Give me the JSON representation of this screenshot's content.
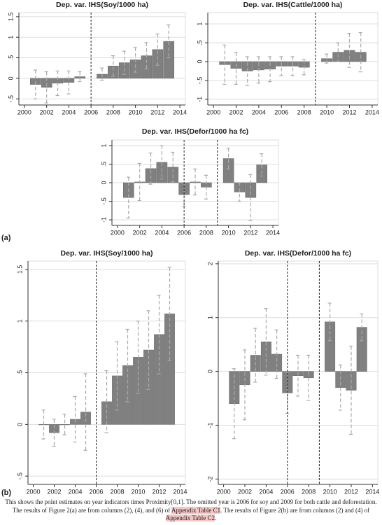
{
  "chart_data": [
    {
      "type": "bar",
      "title": "Dep. var. IHS(Soy/1000 ha)",
      "color": "#808080",
      "grid": true,
      "x": [
        2001,
        2002,
        2003,
        2004,
        2005,
        2007,
        2008,
        2009,
        2010,
        2011,
        2012,
        2013
      ],
      "values": [
        -0.15,
        -0.22,
        -0.12,
        -0.1,
        0.04,
        0.1,
        0.3,
        0.38,
        0.45,
        0.55,
        0.7,
        0.9
      ],
      "errors": [
        0.35,
        0.38,
        0.3,
        0.28,
        0.12,
        0.15,
        0.25,
        0.28,
        0.3,
        0.32,
        0.38,
        0.4
      ],
      "reference_lines": [
        2006
      ],
      "xlim": [
        1999.5,
        2014.5
      ],
      "xticks": [
        2000,
        2002,
        2004,
        2006,
        2008,
        2010,
        2012,
        2014
      ],
      "ylim": [
        -0.65,
        1.6
      ],
      "yticks": [
        {
          "value": -0.5,
          "label": "-.5"
        },
        0,
        {
          "value": 0.5,
          "label": ".5"
        },
        1,
        1.5
      ]
    },
    {
      "type": "bar",
      "title": "Dep. var. IHS(Cattle/1000 ha)",
      "color": "#808080",
      "grid": true,
      "x": [
        2001,
        2002,
        2003,
        2004,
        2005,
        2006,
        2007,
        2008,
        2010,
        2011,
        2012,
        2013
      ],
      "values": [
        -0.08,
        -0.18,
        -0.25,
        -0.22,
        -0.2,
        -0.12,
        -0.12,
        -0.15,
        0.08,
        0.25,
        0.3,
        0.25
      ],
      "errors": [
        0.52,
        0.42,
        0.38,
        0.35,
        0.33,
        0.25,
        0.25,
        0.2,
        0.12,
        0.25,
        0.45,
        0.52
      ],
      "reference_lines": [
        2009
      ],
      "xlim": [
        1999.5,
        2014.5
      ],
      "xticks": [
        2000,
        2002,
        2004,
        2006,
        2008,
        2010,
        2012,
        2014
      ],
      "ylim": [
        -1.15,
        1.3
      ],
      "yticks": [
        -1,
        {
          "value": -0.5,
          "label": "-.5"
        },
        0,
        {
          "value": 0.5,
          "label": ".5"
        },
        1
      ]
    },
    {
      "type": "bar",
      "title": "Dep. var. IHS(Defor/1000 ha fc)",
      "color": "#808080",
      "grid": true,
      "x": [
        2001,
        2002,
        2003,
        2004,
        2005,
        2006,
        2007,
        2008,
        2010,
        2011,
        2012,
        2013
      ],
      "values": [
        -0.4,
        0.02,
        0.38,
        0.55,
        0.42,
        -0.32,
        0.02,
        -0.12,
        0.65,
        -0.25,
        -0.4,
        0.48
      ],
      "errors": [
        0.55,
        0.5,
        0.42,
        0.45,
        0.4,
        0.32,
        0.35,
        0.32,
        0.28,
        0.25,
        0.62,
        0.3
      ],
      "reference_lines": [
        2006,
        2009
      ],
      "xlim": [
        1999.5,
        2014.5
      ],
      "xticks": [
        2000,
        2002,
        2004,
        2006,
        2008,
        2010,
        2012,
        2014
      ],
      "ylim": [
        -1.15,
        1.15
      ],
      "yticks": [
        -1,
        {
          "value": -0.5,
          "label": "-.5"
        },
        0,
        {
          "value": 0.5,
          "label": ".5"
        },
        1
      ]
    },
    {
      "type": "bar",
      "title": "Dep. var. IHS(Soy/1000 ha)",
      "color": "#808080",
      "grid": true,
      "x": [
        2001,
        2002,
        2003,
        2004,
        2005,
        2007,
        2008,
        2009,
        2010,
        2011,
        2012,
        2013
      ],
      "values": [
        0.0,
        -0.08,
        0.0,
        0.05,
        0.12,
        0.22,
        0.47,
        0.57,
        0.65,
        0.72,
        0.87,
        1.07
      ],
      "errors": [
        0.14,
        0.13,
        0.1,
        0.22,
        0.37,
        0.3,
        0.33,
        0.35,
        0.35,
        0.38,
        0.38,
        0.45
      ],
      "reference_lines": [
        2006
      ],
      "xlim": [
        1999.5,
        2014.5
      ],
      "xticks": [
        2000,
        2002,
        2004,
        2006,
        2008,
        2010,
        2012,
        2014
      ],
      "ylim": [
        -0.58,
        1.58
      ],
      "yticks": [
        {
          "value": -0.5,
          "label": "-.5"
        },
        0,
        {
          "value": 0.5,
          "label": ".5"
        },
        1,
        1.5
      ]
    },
    {
      "type": "bar",
      "title": "Dep. var. IHS(Defor/1000 ha fc)",
      "color": "#808080",
      "grid": true,
      "x": [
        2001,
        2002,
        2003,
        2004,
        2005,
        2006,
        2007,
        2008,
        2010,
        2011,
        2012,
        2013
      ],
      "values": [
        -0.6,
        -0.25,
        0.3,
        0.55,
        0.32,
        -0.4,
        -0.08,
        -0.12,
        0.92,
        -0.3,
        -0.35,
        0.82
      ],
      "errors": [
        0.65,
        0.65,
        0.5,
        0.62,
        0.45,
        0.38,
        0.38,
        0.42,
        0.35,
        0.42,
        0.82,
        0.25
      ],
      "reference_lines": [
        2006,
        2009
      ],
      "xlim": [
        1999.5,
        2014.5
      ],
      "xticks": [
        2000,
        2002,
        2004,
        2006,
        2008,
        2010,
        2012,
        2014
      ],
      "ylim": [
        -2.1,
        2.05
      ],
      "yticks": [
        -2,
        -1,
        0,
        1,
        2
      ]
    }
  ],
  "panel_labels": [
    "(a)",
    "(b)"
  ],
  "caption": {
    "text_1": "This shows the point estimates on year indicators times Proximity[0,1]. The omitted year is 2006 for soy and 2009 for both cattle and deforestation. The results of Figure 2(a) are from columns (2), (4), and (6) of ",
    "link_1": "Appendix Table C1",
    "text_2": ". The results of Figure 2(b) are from columns (2) and (4) of ",
    "link_2": "Appendix Table C2",
    "text_3": "."
  }
}
